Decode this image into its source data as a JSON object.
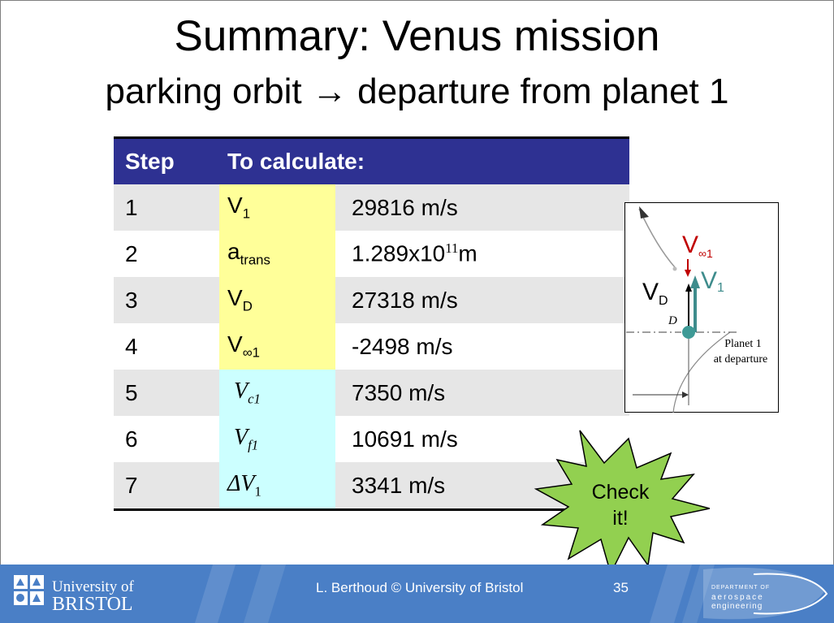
{
  "title": "Summary: Venus mission",
  "subtitle": "parking orbit → departure from planet 1",
  "table": {
    "header_step": "Step",
    "header_calc": "To calculate:",
    "rows": [
      {
        "step": "1",
        "var": "V",
        "sub": "1",
        "value": "29816 m/s"
      },
      {
        "step": "2",
        "var": "a",
        "sub": "trans",
        "value_mant": "1.289x10",
        "value_exp": "11",
        "value_unit": "m"
      },
      {
        "step": "3",
        "var": "V",
        "sub": "D",
        "value": "27318 m/s"
      },
      {
        "step": "4",
        "var": "V",
        "sub": "∞1",
        "value": "-2498 m/s"
      },
      {
        "step": "5",
        "var": "V",
        "sub": "c1",
        "value": "7350 m/s"
      },
      {
        "step": "6",
        "var": "V",
        "sub": "f1",
        "value": "10691 m/s"
      },
      {
        "step": "7",
        "var": "ΔV",
        "sub": "1",
        "value": "3341 m/s"
      }
    ]
  },
  "figure": {
    "v_inf": "V",
    "v_inf_sub": "∞1",
    "v1": "V",
    "v1_sub": "1",
    "vd": "V",
    "vd_sub": "D",
    "d_label": "D",
    "planet_line1": "Planet 1",
    "planet_line2": "at departure"
  },
  "badge": {
    "line1": "Check",
    "line2": "it!"
  },
  "footer": {
    "uni_line1": "University of",
    "uni_line2": "BRISTOL",
    "author": "L. Berthoud © University of Bristol",
    "page": "35",
    "dept_line1": "DEPARTMENT OF",
    "dept_line2": "aerospace",
    "dept_line3": "engineering"
  },
  "colors": {
    "header": "#2e3192",
    "yellow": "#ffff99",
    "cyan": "#ccffff",
    "footer": "#4a7fc6",
    "badge": "#92d050"
  }
}
